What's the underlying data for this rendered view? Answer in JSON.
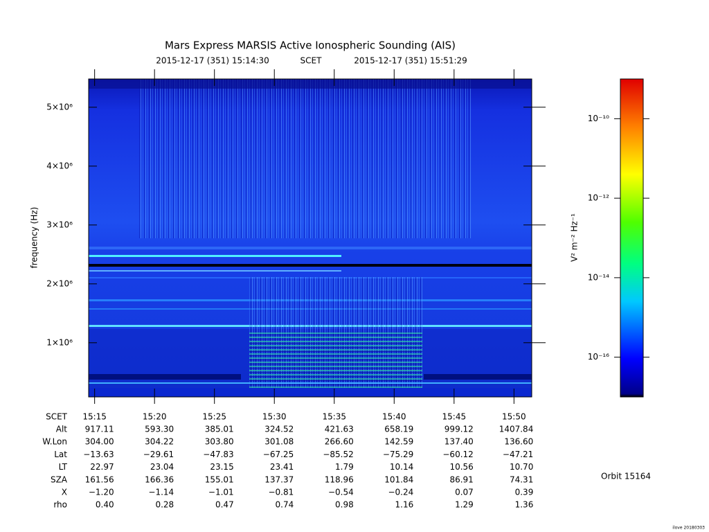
{
  "chart_data": {
    "type": "spectrogram",
    "title": "Mars Express MARSIS Active Ionospheric Sounding (AIS)",
    "start": "2015-12-17 (351) 15:14:30",
    "time_system": "SCET",
    "end": "2015-12-17 (351) 15:51:29",
    "ylabel": "frequency (Hz)",
    "ylim": [
      80000,
      5480000
    ],
    "yticks": [
      {
        "value": 1000000,
        "label": "1×10⁶"
      },
      {
        "value": 2000000,
        "label": "2×10⁶"
      },
      {
        "value": 3000000,
        "label": "3×10⁶"
      },
      {
        "value": 4000000,
        "label": "4×10⁶"
      },
      {
        "value": 5000000,
        "label": "5×10⁶"
      }
    ],
    "xlim": [
      "15:14:30",
      "15:51:29"
    ],
    "xticks": [
      "15:15",
      "15:20",
      "15:25",
      "15:30",
      "15:35",
      "15:40",
      "15:45",
      "15:50"
    ],
    "ephemeris": {
      "label": "SCET",
      "rows": [
        {
          "label": "Alt",
          "values": [
            "917.11",
            "593.30",
            "385.01",
            "324.52",
            "421.63",
            "658.19",
            "999.12",
            "1407.84"
          ]
        },
        {
          "label": "W.Lon",
          "values": [
            "304.00",
            "304.22",
            "303.80",
            "301.08",
            "266.60",
            "142.59",
            "137.40",
            "136.60"
          ]
        },
        {
          "label": "Lat",
          "values": [
            "−13.63",
            "−29.61",
            "−47.83",
            "−67.25",
            "−85.52",
            "−75.29",
            "−60.12",
            "−47.21"
          ]
        },
        {
          "label": "LT",
          "values": [
            "22.97",
            "23.04",
            "23.15",
            "23.41",
            "1.79",
            "10.14",
            "10.56",
            "10.70"
          ]
        },
        {
          "label": "SZA",
          "values": [
            "161.56",
            "166.36",
            "155.01",
            "137.37",
            "118.96",
            "101.84",
            "86.91",
            "74.31"
          ]
        },
        {
          "label": "X",
          "values": [
            "−1.20",
            "−1.14",
            "−1.01",
            "−0.81",
            "−0.54",
            "−0.24",
            "0.07",
            "0.39"
          ]
        },
        {
          "label": "rho",
          "values": [
            "0.40",
            "0.28",
            "0.47",
            "0.74",
            "0.98",
            "1.16",
            "1.29",
            "1.36"
          ]
        }
      ]
    },
    "colorbar": {
      "label": "V² m⁻² Hz⁻¹",
      "log": true,
      "clim": [
        1e-17,
        1e-09
      ],
      "ticks": [
        {
          "value": 1e-10,
          "label": "10⁻¹⁰"
        },
        {
          "value": 1e-12,
          "label": "10⁻¹²"
        },
        {
          "value": 1e-14,
          "label": "10⁻¹⁴"
        },
        {
          "value": 1e-16,
          "label": "10⁻¹⁶"
        }
      ]
    },
    "orbit": "Orbit 15164",
    "stamp": "ilove 20180303"
  }
}
